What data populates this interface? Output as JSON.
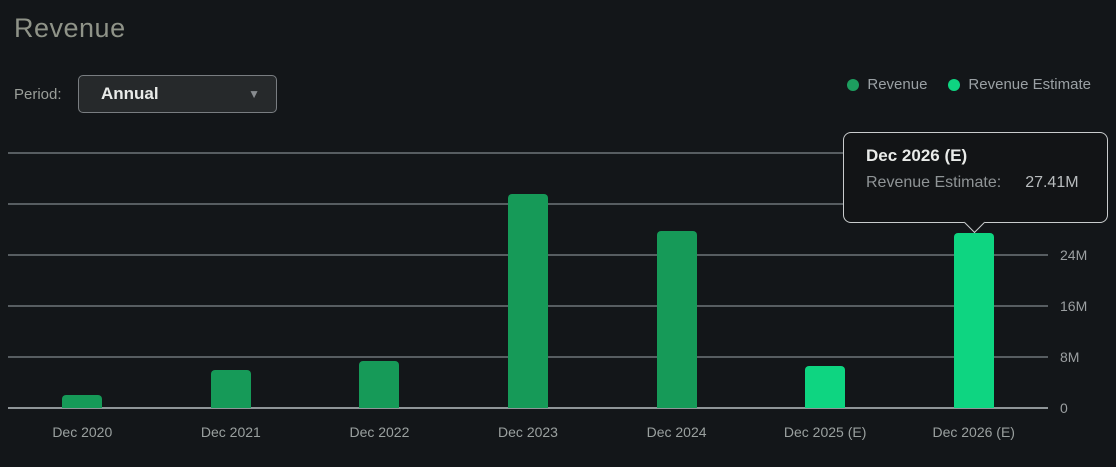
{
  "header": {
    "title": "Revenue"
  },
  "period": {
    "label": "Period:",
    "selected": "Annual",
    "caret_icon": "▼"
  },
  "legend": [
    {
      "label": "Revenue",
      "color": "#1d9e5f"
    },
    {
      "label": "Revenue Estimate",
      "color": "#0ed581"
    }
  ],
  "tooltip": {
    "title": "Dec 2026 (E)",
    "series_label": "Revenue Estimate:",
    "value": "27.41M"
  },
  "chart_data": {
    "type": "bar",
    "title": "Revenue",
    "categories": [
      "Dec 2020",
      "Dec 2021",
      "Dec 2022",
      "Dec 2023",
      "Dec 2024",
      "Dec 2025 (E)",
      "Dec 2026 (E)"
    ],
    "series": [
      {
        "name": "Revenue",
        "color": "#169a58",
        "values": [
          2.1,
          6.0,
          7.4,
          33.5,
          27.7,
          null,
          null
        ]
      },
      {
        "name": "Revenue Estimate",
        "color": "#0ed581",
        "values": [
          null,
          null,
          null,
          null,
          null,
          6.6,
          27.41
        ]
      }
    ],
    "unit": "M",
    "ylabel": "",
    "xlabel": "",
    "ylim": [
      0,
      40
    ],
    "ytick_step": 8,
    "yticks_visible": [
      {
        "label": "0",
        "value": 0
      },
      {
        "label": "8M",
        "value": 8
      },
      {
        "label": "16M",
        "value": 16
      },
      {
        "label": "24M",
        "value": 24
      }
    ],
    "grid": true,
    "legend_position": "top-right",
    "highlighted_category": "Dec 2026 (E)"
  }
}
